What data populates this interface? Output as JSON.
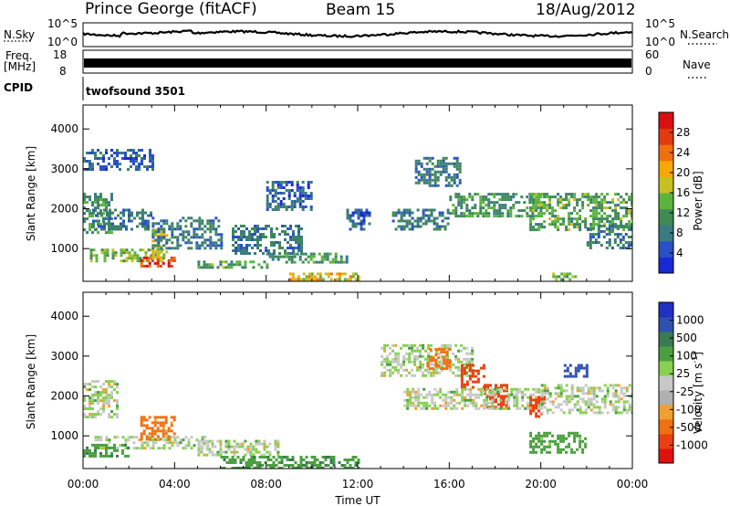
{
  "header": {
    "station": "Prince George (fitACF)",
    "beam": "Beam 15",
    "date": "18/Aug/2012"
  },
  "noise_panel": {
    "left_label": "N.Sky",
    "left_top": "10^5",
    "left_bottom": "10^0",
    "right_label": "N.Search",
    "right_top": "10^5",
    "right_bottom": "10^0",
    "trace_color": "#000000"
  },
  "freq_panel": {
    "left_label_1": "Freq.",
    "left_label_2": "[MHz]",
    "left_top": "18",
    "left_bottom": "8",
    "right_label": "Nave",
    "right_top": "60",
    "right_bottom": "0"
  },
  "cpid_panel": {
    "label": "CPID",
    "value": "twofsound 3501"
  },
  "colors": {
    "power_scale": [
      "#1a28d6",
      "#2a50c8",
      "#3a7a80",
      "#3f8a55",
      "#5ab43e",
      "#c8c020",
      "#f5a800",
      "#f07010",
      "#e33a10",
      "#d81010"
    ],
    "velocity_scale": [
      "#2030c0",
      "#3050b0",
      "#3a7a50",
      "#4aa040",
      "#88d050",
      "#c8c8c8",
      "#b0b0b0",
      "#f0a030",
      "#f07010",
      "#e84010",
      "#e01010"
    ]
  },
  "chart_data": [
    {
      "type": "heatmap",
      "panel": "power",
      "ylabel": "Slant Range [km]",
      "yticks": [
        1000,
        2000,
        3000,
        4000
      ],
      "ylim": [
        180,
        4600
      ],
      "xlim": [
        0,
        24
      ],
      "xticks": [
        "00:00",
        "04:00",
        "08:00",
        "12:00",
        "16:00",
        "20:00",
        "00:00"
      ],
      "colorbar": {
        "label": "Power [dB]",
        "ticks": [
          "4",
          "8",
          "12",
          "16",
          "20",
          "24",
          "28"
        ],
        "range": [
          0,
          30
        ]
      },
      "regions": [
        {
          "t0": 0.0,
          "t1": 1.3,
          "r0": 1400,
          "r1": 2400,
          "level": 10
        },
        {
          "t0": 0.4,
          "t1": 3.0,
          "r0": 1500,
          "r1": 2000,
          "level": 8
        },
        {
          "t0": 0.3,
          "t1": 3.5,
          "r0": 700,
          "r1": 1000,
          "level": 14
        },
        {
          "t0": 2.5,
          "t1": 4.0,
          "r0": 550,
          "r1": 800,
          "level": 26
        },
        {
          "t0": 3.0,
          "t1": 3.7,
          "r0": 750,
          "r1": 1500,
          "level": 16
        },
        {
          "t0": 0.0,
          "t1": 3.0,
          "r0": 3000,
          "r1": 3500,
          "level": 6
        },
        {
          "t0": 3.0,
          "t1": 6.0,
          "r0": 1000,
          "r1": 1800,
          "level": 8
        },
        {
          "t0": 5.0,
          "t1": 8.0,
          "r0": 500,
          "r1": 700,
          "level": 12
        },
        {
          "t0": 6.5,
          "t1": 9.5,
          "r0": 900,
          "r1": 1600,
          "level": 8
        },
        {
          "t0": 8.0,
          "t1": 11.5,
          "r0": 650,
          "r1": 900,
          "level": 10
        },
        {
          "t0": 8.0,
          "t1": 10.0,
          "r0": 2000,
          "r1": 2700,
          "level": 6
        },
        {
          "t0": 9.0,
          "t1": 12.0,
          "r0": 200,
          "r1": 400,
          "level": 18
        },
        {
          "t0": 11.5,
          "t1": 12.5,
          "r0": 1500,
          "r1": 2000,
          "level": 6
        },
        {
          "t0": 13.5,
          "t1": 16.0,
          "r0": 1500,
          "r1": 2000,
          "level": 8
        },
        {
          "t0": 14.5,
          "t1": 16.5,
          "r0": 2600,
          "r1": 3300,
          "level": 8
        },
        {
          "t0": 16.0,
          "t1": 20.0,
          "r0": 1800,
          "r1": 2400,
          "level": 10
        },
        {
          "t0": 19.5,
          "t1": 24.0,
          "r0": 1500,
          "r1": 2400,
          "level": 12
        },
        {
          "t0": 20.5,
          "t1": 21.5,
          "r0": 250,
          "r1": 400,
          "level": 14
        },
        {
          "t0": 22.0,
          "t1": 24.0,
          "r0": 1000,
          "r1": 1600,
          "level": 8
        }
      ]
    },
    {
      "type": "heatmap",
      "panel": "velocity",
      "ylabel": "Slant Range [km]",
      "yticks": [
        1000,
        2000,
        3000,
        4000
      ],
      "ylim": [
        180,
        4600
      ],
      "xlim": [
        0,
        24
      ],
      "xticks": [
        "00:00",
        "04:00",
        "08:00",
        "12:00",
        "16:00",
        "20:00",
        "00:00"
      ],
      "xlabel": "Time UT",
      "colorbar": {
        "label": "Velocity [m s-1]",
        "ticks": [
          "1000",
          "500",
          "100",
          "25",
          "-25",
          "-100",
          "-500",
          "-1000"
        ]
      },
      "regions": [
        {
          "t0": 0.0,
          "t1": 1.5,
          "r0": 1500,
          "r1": 2400,
          "v": 0
        },
        {
          "t0": 0.5,
          "t1": 5.5,
          "r0": 700,
          "r1": 1000,
          "v": 0
        },
        {
          "t0": 2.5,
          "t1": 4.0,
          "r0": 900,
          "r1": 1500,
          "v": -120
        },
        {
          "t0": 0.0,
          "t1": 2.0,
          "r0": 500,
          "r1": 800,
          "v": 80
        },
        {
          "t0": 5.0,
          "t1": 8.5,
          "r0": 500,
          "r1": 900,
          "v": 0
        },
        {
          "t0": 6.0,
          "t1": 12.0,
          "r0": 200,
          "r1": 500,
          "v": 80
        },
        {
          "t0": 13.0,
          "t1": 17.0,
          "r0": 2500,
          "r1": 3300,
          "v": 0
        },
        {
          "t0": 15.0,
          "t1": 16.0,
          "r0": 2700,
          "r1": 3200,
          "v": -200
        },
        {
          "t0": 16.5,
          "t1": 17.5,
          "r0": 2200,
          "r1": 2800,
          "v": -600
        },
        {
          "t0": 17.5,
          "t1": 18.5,
          "r0": 1700,
          "r1": 2300,
          "v": -500
        },
        {
          "t0": 14.0,
          "t1": 20.0,
          "r0": 1700,
          "r1": 2200,
          "v": 0
        },
        {
          "t0": 19.5,
          "t1": 20.2,
          "r0": 1500,
          "r1": 2000,
          "v": -700
        },
        {
          "t0": 20.0,
          "t1": 24.0,
          "r0": 1600,
          "r1": 2300,
          "v": 0
        },
        {
          "t0": 21.0,
          "t1": 22.0,
          "r0": 2500,
          "r1": 2800,
          "v": 500
        },
        {
          "t0": 19.5,
          "t1": 22.0,
          "r0": 600,
          "r1": 1100,
          "v": 50
        }
      ]
    }
  ]
}
